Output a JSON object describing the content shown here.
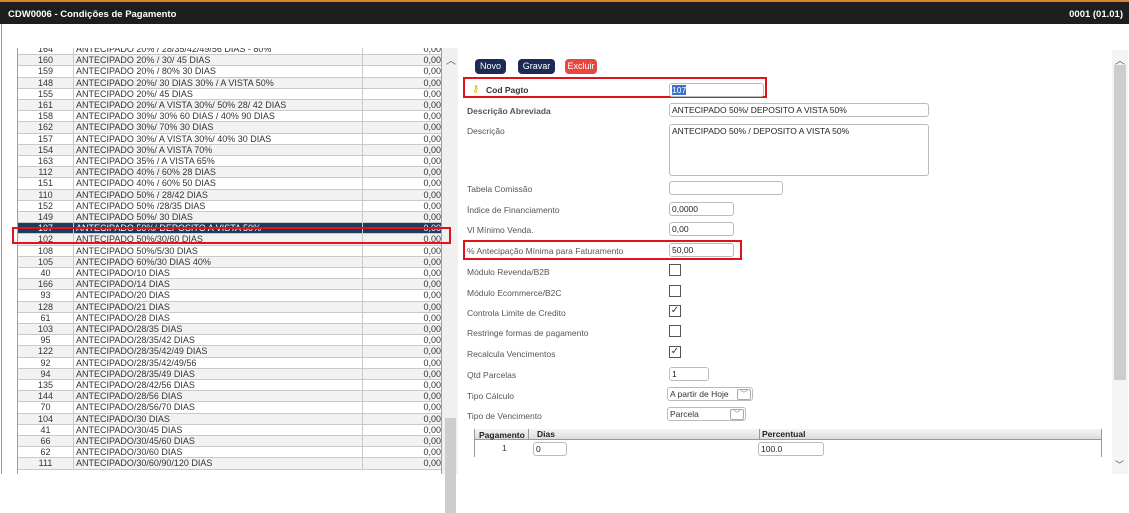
{
  "window": {
    "title": "CDW0006 - Condições de Pagamento",
    "version": "0001 (01.01)"
  },
  "list": {
    "rows": [
      [
        "164",
        "ANTECIPADO 20% / 28/35/42/49/56 DIAS - 80%",
        "0,00"
      ],
      [
        "160",
        "ANTECIPADO 20% / 30/ 45 DIAS",
        "0,00"
      ],
      [
        "159",
        "ANTECIPADO 20% / 80% 30 DIAS",
        "0,00"
      ],
      [
        "148",
        "ANTECIPADO 20%/ 30 DIAS 30% / A VISTA 50%",
        "0,00"
      ],
      [
        "155",
        "ANTECIPADO 20%/ 45 DIAS",
        "0,00"
      ],
      [
        "161",
        "ANTECIPADO 20%/ A VISTA 30%/ 50% 28/ 42 DIAS",
        "0,00"
      ],
      [
        "158",
        "ANTECIPADO 30%/ 30% 60 DIAS / 40% 90 DIAS",
        "0,00"
      ],
      [
        "162",
        "ANTECIPADO 30%/ 70% 30 DIAS",
        "0,00"
      ],
      [
        "157",
        "ANTECIPADO 30%/ A VISTA 30%/ 40% 30 DIAS",
        "0,00"
      ],
      [
        "154",
        "ANTECIPADO 30%/ A VISTA 70%",
        "0,00"
      ],
      [
        "163",
        "ANTECIPADO 35% / A VISTA 65%",
        "0,00"
      ],
      [
        "112",
        "ANTECIPADO 40% / 60% 28 DIAS",
        "0,00"
      ],
      [
        "151",
        "ANTECIPADO 40% / 60% 50 DIAS",
        "0,00"
      ],
      [
        "110",
        "ANTECIPADO 50% / 28/42 DIAS",
        "0,00"
      ],
      [
        "152",
        "ANTECIPADO 50% /28/35 DIAS",
        "0,00"
      ],
      [
        "149",
        "ANTECIPADO 50%/ 30 DIAS",
        "0,00"
      ],
      [
        "107",
        "ANTECIPADO 50%/ DEPOSITO A VISTA 50%",
        "0,00"
      ],
      [
        "102",
        "ANTECIPADO 50%/30/60 DIAS",
        "0,00"
      ],
      [
        "108",
        "ANTECIPADO 50%/5/30 DIAS",
        "0,00"
      ],
      [
        "105",
        "ANTECIPADO 60%/30 DIAS 40%",
        "0,00"
      ],
      [
        "40",
        "ANTECIPADO/10 DIAS",
        "0,00"
      ],
      [
        "166",
        "ANTECIPADO/14 DIAS",
        "0,00"
      ],
      [
        "93",
        "ANTECIPADO/20 DIAS",
        "0,00"
      ],
      [
        "128",
        "ANTECIPADO/21 DIAS",
        "0,00"
      ],
      [
        "61",
        "ANTECIPADO/28 DIAS",
        "0,00"
      ],
      [
        "103",
        "ANTECIPADO/28/35 DIAS",
        "0,00"
      ],
      [
        "95",
        "ANTECIPADO/28/35/42 DIAS",
        "0,00"
      ],
      [
        "122",
        "ANTECIPADO/28/35/42/49 DIAS",
        "0,00"
      ],
      [
        "92",
        "ANTECIPADO/28/35/42/49/56",
        "0,00"
      ],
      [
        "94",
        "ANTECIPADO/28/35/49 DIAS",
        "0,00"
      ],
      [
        "135",
        "ANTECIPADO/28/42/56 DIAS",
        "0,00"
      ],
      [
        "144",
        "ANTECIPADO/28/56 DIAS",
        "0,00"
      ],
      [
        "70",
        "ANTECIPADO/28/56/70 DIAS",
        "0,00"
      ],
      [
        "104",
        "ANTECIPADO/30 DIAS",
        "0,00"
      ],
      [
        "41",
        "ANTECIPADO/30/45 DIAS",
        "0,00"
      ],
      [
        "66",
        "ANTECIPADO/30/45/60 DIAS",
        "0,00"
      ],
      [
        "62",
        "ANTECIPADO/30/60 DIAS",
        "0,00"
      ],
      [
        "111",
        "ANTECIPADO/30/60/90/120 DIAS",
        "0,00"
      ]
    ],
    "selected_index": 16
  },
  "toolbar": {
    "novo": "Novo",
    "gravar": "Gravar",
    "excluir": "Excluir"
  },
  "colors": {
    "novo": "#1c2a55",
    "excluir": "#e8473f",
    "selected_row": "#203a5a",
    "highlight": "#e0121a"
  },
  "form": {
    "cod_pagto": {
      "label": "Cod Pagto",
      "value": "107"
    },
    "desc_abrev": {
      "label": "Descrição Abreviada",
      "value": "ANTECIPADO 50%/ DEPOSITO A VISTA 50%"
    },
    "descricao": {
      "label": "Descrição",
      "value": "ANTECIPADO 50% / DEPOSITO A VISTA 50%"
    },
    "tabela_comissao": {
      "label": "Tabela Comissão",
      "value": ""
    },
    "indice_fin": {
      "label": "Índice de Financiamento",
      "value": "0,0000"
    },
    "vl_minimo": {
      "label": "Vl Mínimo Venda.",
      "value": "0,00"
    },
    "antecipacao": {
      "label": "% Antecipação Mínima para Faturamento",
      "value": "50,00"
    },
    "modulo_revenda": {
      "label": "Módulo Revenda/B2B",
      "checked": false
    },
    "modulo_ecommerce": {
      "label": "Módulo Ecommerce/B2C",
      "checked": false
    },
    "controla_limite": {
      "label": "Controla Limite de Credito",
      "checked": true
    },
    "restringe": {
      "label": "Restringe formas de pagamento",
      "checked": false
    },
    "recalcula": {
      "label": "Recalcula Vencimentos",
      "checked": true
    },
    "qtd_parcelas": {
      "label": "Qtd Parcelas",
      "value": "1"
    },
    "tipo_calculo": {
      "label": "Tipo Cálculo",
      "value": "A partir de Hoje"
    },
    "tipo_vencimento": {
      "label": "Tipo de Vencimento",
      "value": "Parcela"
    }
  },
  "parcelas": {
    "headers": [
      "Pagamento",
      "Dias",
      "Percentual"
    ],
    "rows": [
      [
        "1",
        "0",
        "100.0"
      ]
    ]
  }
}
